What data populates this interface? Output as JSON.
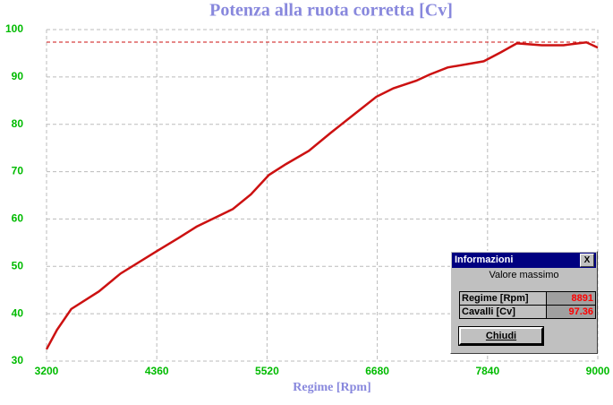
{
  "chart_data": {
    "type": "line",
    "title": "Potenza alla ruota corretta [Cv]",
    "x_label": "Regime [Rpm]",
    "x": [
      3200,
      3310,
      3460,
      3750,
      3980,
      4360,
      4590,
      4780,
      5160,
      5350,
      5540,
      5720,
      5960,
      6190,
      6430,
      6670,
      6850,
      7090,
      7230,
      7420,
      7800,
      7980,
      8150,
      8410,
      8640,
      8880,
      9000
    ],
    "values": [
      32.5,
      36.6,
      41,
      44.7,
      48.5,
      53.2,
      56,
      58.4,
      62.1,
      65.2,
      69.3,
      71.6,
      74.4,
      78.2,
      82,
      85.8,
      87.6,
      89.2,
      90.5,
      92,
      93.3,
      95.2,
      97.1,
      96.7,
      96.7,
      97.3,
      96.2
    ],
    "color": "#cc1111",
    "hline": 97.36,
    "hline_color": "#cc1111",
    "xlim": [
      3200,
      9000
    ],
    "xticks": [
      3200,
      4360,
      5520,
      6680,
      7840,
      9000
    ],
    "ylim": [
      30,
      100
    ],
    "yticks": [
      30,
      40,
      50,
      60,
      70,
      80,
      90,
      100
    ],
    "grid": true
  },
  "dialog": {
    "title": "Informazioni",
    "close": "X",
    "subtitle": "Valore massimo",
    "rows": [
      [
        "Regime [Rpm]",
        "8891"
      ],
      [
        "Cavalli [Cv]",
        "97.36"
      ]
    ],
    "button": "Chiudi"
  }
}
